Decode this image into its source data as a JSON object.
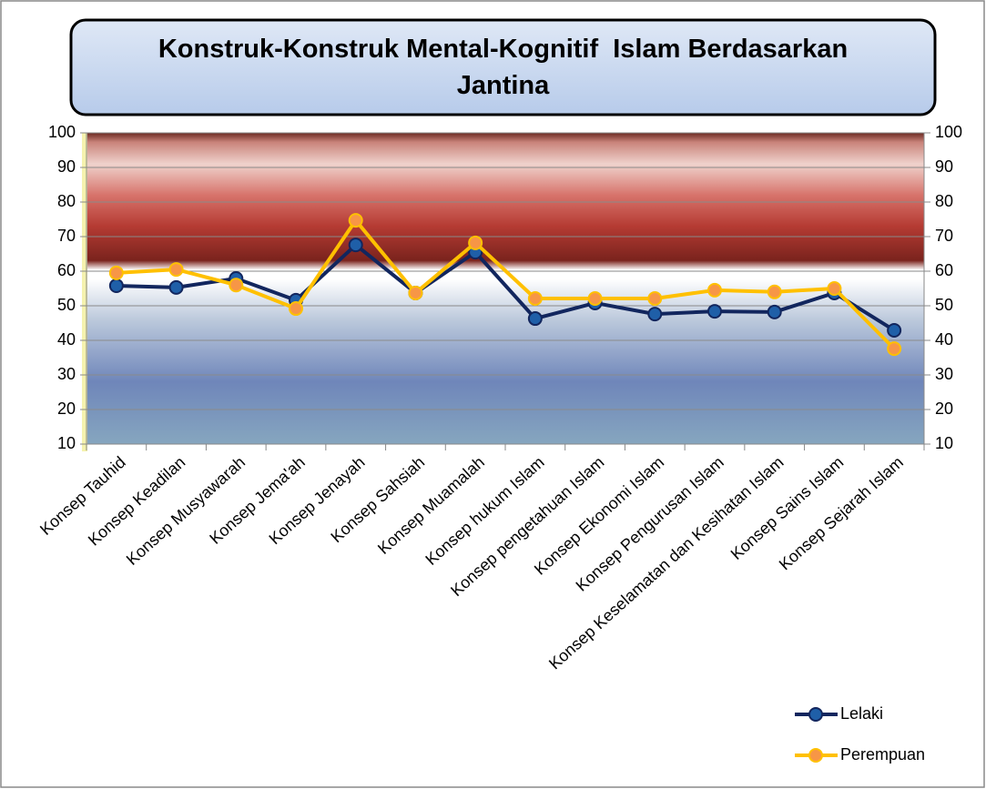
{
  "chart_data": {
    "type": "line",
    "title": "Konstruk-Konstruk Mental-Kognitif  Islam Berdasarkan Jantina",
    "categories": [
      "Konsep Tauhid",
      "Konsep Keadilan",
      "Konsep Musyawarah",
      "Konsep Jema'ah",
      "Konsep Jenayah",
      "Konsep Sahsiah",
      "Konsep Muamalah",
      "Konsep hukum Islam",
      "Konsep  pengetahuan Islam",
      "Konsep Ekonomi Islam",
      "Konsep Pengurusan Islam",
      "Konsep Keselamatan dan Kesihatan Islam",
      "Konsep Sains Islam",
      "Konsep Sejarah Islam"
    ],
    "series": [
      {
        "name": "Lelaki",
        "color": "#12265e",
        "marker_fill": "#1f5fa8",
        "values": [
          55.8,
          55.3,
          57.9,
          51.6,
          67.6,
          53.7,
          65.5,
          46.3,
          50.8,
          47.6,
          48.4,
          48.2,
          53.7,
          42.9
        ]
      },
      {
        "name": "Perempuan",
        "color": "#ffc000",
        "marker_fill": "#f79646",
        "values": [
          59.5,
          60.5,
          56.0,
          49.2,
          74.7,
          53.7,
          68.2,
          52.1,
          52.1,
          52.1,
          54.5,
          54.0,
          55.0,
          37.6
        ]
      }
    ],
    "ylim": [
      10,
      100
    ],
    "yticks": [
      10,
      20,
      30,
      40,
      50,
      60,
      70,
      80,
      90,
      100
    ],
    "y2lim": [
      10,
      100
    ],
    "y2ticks": [
      10,
      20,
      30,
      40,
      50,
      60,
      70,
      80,
      90,
      100
    ],
    "grid": true,
    "legend": "bottom-right"
  }
}
